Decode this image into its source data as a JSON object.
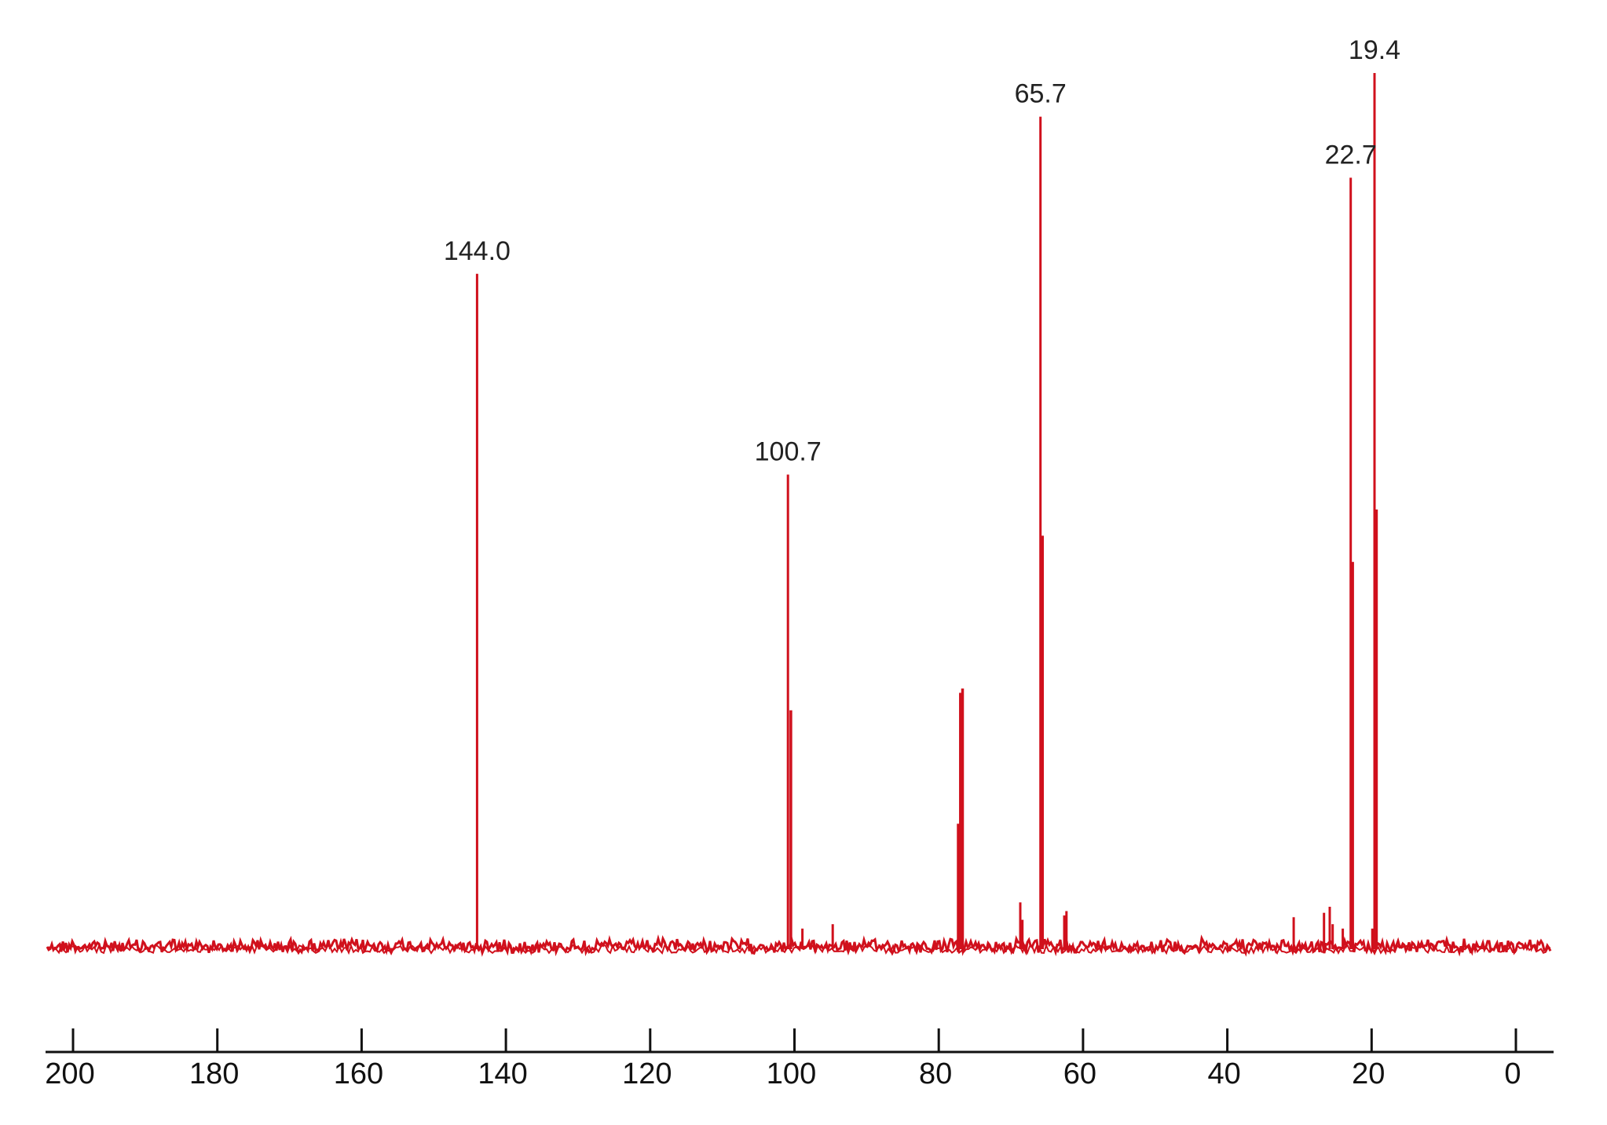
{
  "chart_data": {
    "type": "line",
    "title": "",
    "xlabel": "",
    "ylabel": "",
    "x_reversed": true,
    "xlim": [
      200,
      -4
    ],
    "ylim": [
      0,
      100
    ],
    "grid": false,
    "legend": "none",
    "x_ticks": [
      200,
      180,
      160,
      140,
      120,
      100,
      80,
      60,
      40,
      20,
      0
    ],
    "x_tick_labels": [
      "200",
      "180",
      "160",
      "140",
      "120",
      "100",
      "80",
      "60",
      "40",
      "20",
      "0"
    ],
    "series": [
      {
        "color": "#d0101c",
        "peaks": [
          {
            "x": 144.0,
            "height": 77,
            "label": "144.0"
          },
          {
            "x": 100.9,
            "height": 54,
            "label": "100.7"
          },
          {
            "x": 100.5,
            "height": 27,
            "label": ""
          },
          {
            "x": 98.9,
            "height": 2,
            "label": ""
          },
          {
            "x": 94.7,
            "height": 2.5,
            "label": ""
          },
          {
            "x": 77.3,
            "height": 14,
            "label": ""
          },
          {
            "x": 77.0,
            "height": 29,
            "label": ""
          },
          {
            "x": 76.7,
            "height": 29.5,
            "label": ""
          },
          {
            "x": 68.7,
            "height": 5,
            "label": ""
          },
          {
            "x": 68.4,
            "height": 3,
            "label": ""
          },
          {
            "x": 65.9,
            "height": 95,
            "label": "65.7"
          },
          {
            "x": 65.6,
            "height": 47,
            "label": ""
          },
          {
            "x": 62.6,
            "height": 3.5,
            "label": ""
          },
          {
            "x": 62.3,
            "height": 4,
            "label": ""
          },
          {
            "x": 30.8,
            "height": 3.3,
            "label": ""
          },
          {
            "x": 26.6,
            "height": 3.8,
            "label": ""
          },
          {
            "x": 25.8,
            "height": 4.5,
            "label": ""
          },
          {
            "x": 25.4,
            "height": 2.5,
            "label": ""
          },
          {
            "x": 24.0,
            "height": 2,
            "label": ""
          },
          {
            "x": 22.9,
            "height": 88,
            "label": "22.7"
          },
          {
            "x": 22.6,
            "height": 44,
            "label": ""
          },
          {
            "x": 19.6,
            "height": 100,
            "label": "19.4"
          },
          {
            "x": 19.3,
            "height": 50,
            "label": ""
          },
          {
            "x": 19.9,
            "height": 2,
            "label": ""
          }
        ]
      }
    ]
  }
}
